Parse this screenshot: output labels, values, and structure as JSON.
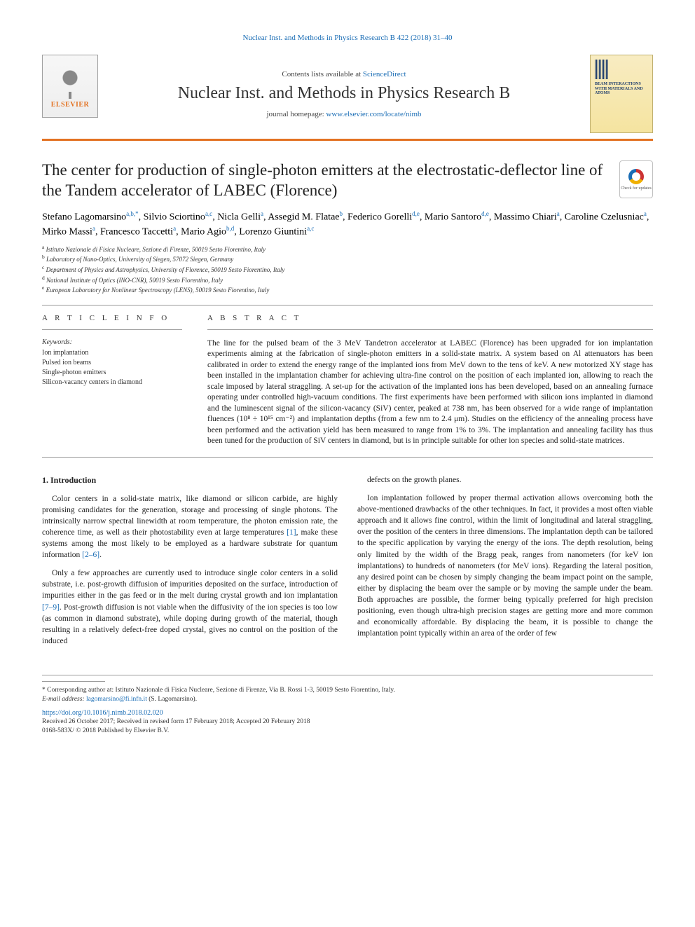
{
  "running_head": "Nuclear Inst. and Methods in Physics Research B 422 (2018) 31–40",
  "header": {
    "contents_prefix": "Contents lists available at ",
    "contents_link": "ScienceDirect",
    "journal_name": "Nuclear Inst. and Methods in Physics Research B",
    "homepage_prefix": "journal homepage: ",
    "homepage_url": "www.elsevier.com/locate/nimb",
    "elsevier_brand": "ELSEVIER",
    "cover_text": "BEAM INTERACTIONS WITH MATERIALS AND ATOMS"
  },
  "colors": {
    "accent_orange": "#e37222",
    "link_blue": "#1a6db5",
    "text": "#222222",
    "rule": "#999999"
  },
  "article": {
    "title": "The center for production of single-photon emitters at the electrostatic-deflector line of the Tandem accelerator of LABEC (Florence)",
    "check_updates_label": "Check for updates"
  },
  "authors_html": "Stefano Lagomarsino<sup>a,b,*</sup>, Silvio Sciortino<sup>a,c</sup>, Nicla Gelli<sup>a</sup>, Assegid M. Flatae<sup>b</sup>, Federico Gorelli<sup>d,e</sup>, Mario Santoro<sup>d,e</sup>, Massimo Chiari<sup>a</sup>, Caroline Czelusniac<sup>a</sup>, Mirko Massi<sup>a</sup>, Francesco Taccetti<sup>a</sup>, Mario Agio<sup>b,d</sup>, Lorenzo Giuntini<sup>a,c</sup>",
  "affiliations": [
    "a Istituto Nazionale di Fisica Nucleare, Sezione di Firenze, 50019 Sesto Fiorentino, Italy",
    "b Laboratory of Nano-Optics, University of Siegen, 57072 Siegen, Germany",
    "c Department of Physics and Astrophysics, University of Florence, 50019 Sesto Fiorentino, Italy",
    "d National Institute of Optics (INO-CNR), 50019 Sesto Fiorentino, Italy",
    "e European Laboratory for Nonlinear Spectroscopy (LENS), 50019 Sesto Fiorentino, Italy"
  ],
  "article_info": {
    "head": "A R T I C L E   I N F O",
    "kw_label": "Keywords:",
    "keywords": [
      "Ion implantation",
      "Pulsed ion beams",
      "Single-photon emitters",
      "Silicon-vacancy centers in diamond"
    ]
  },
  "abstract": {
    "head": "A B S T R A C T",
    "text": "The line for the pulsed beam of the 3 MeV Tandetron accelerator at LABEC (Florence) has been upgraded for ion implantation experiments aiming at the fabrication of single-photon emitters in a solid-state matrix. A system based on Al attenuators has been calibrated in order to extend the energy range of the implanted ions from MeV down to the tens of keV. A new motorized XY stage has been installed in the implantation chamber for achieving ultra-fine control on the position of each implanted ion, allowing to reach the scale imposed by lateral straggling. A set-up for the activation of the implanted ions has been developed, based on an annealing furnace operating under controlled high-vacuum conditions. The first experiments have been performed with silicon ions implanted in diamond and the luminescent signal of the silicon-vacancy (SiV) center, peaked at 738 nm, has been observed for a wide range of implantation fluences (10⁸ ÷ 10¹⁵ cm⁻²) and implantation depths (from a few nm to 2.4 μm). Studies on the efficiency of the annealing process have been performed and the activation yield has been measured to range from 1% to 3%. The implantation and annealing facility has thus been tuned for the production of SiV centers in diamond, but is in principle suitable for other ion species and solid-state matrices."
  },
  "body": {
    "section_heading": "1. Introduction",
    "left_paragraphs": [
      "Color centers in a solid-state matrix, like diamond or silicon carbide, are highly promising candidates for the generation, storage and processing of single photons. The intrinsically narrow spectral linewidth at room temperature, the photon emission rate, the coherence time, as well as their photostability even at large temperatures [1], make these systems among the most likely to be employed as a hardware substrate for quantum information [2–6].",
      "Only a few approaches are currently used to introduce single color centers in a solid substrate, i.e. post-growth diffusion of impurities deposited on the surface, introduction of impurities either in the gas feed or in the melt during crystal growth and ion implantation [7–9]. Post-growth diffusion is not viable when the diffusivity of the ion species is too low (as common in diamond substrate), while doping during growth of the material, though resulting in a relatively defect-free doped crystal, gives no control on the position of the induced"
    ],
    "right_paragraphs": [
      "defects on the growth planes.",
      "Ion implantation followed by proper thermal activation allows overcoming both the above-mentioned drawbacks of the other techniques. In fact, it provides a most often viable approach and it allows fine control, within the limit of longitudinal and lateral straggling, over the position of the centers in three dimensions. The implantation depth can be tailored to the specific application by varying the energy of the ions. The depth resolution, being only limited by the width of the Bragg peak, ranges from nanometers (for keV ion implantations) to hundreds of nanometers (for MeV ions). Regarding the lateral position, any desired point can be chosen by simply changing the beam impact point on the sample, either by displacing the beam over the sample or by moving the sample under the beam. Both approaches are possible, the former being typically preferred for high precision positioning, even though ultra-high precision stages are getting more and more common and economically affordable. By displacing the beam, it is possible to change the implantation point typically within an area of the order of few"
    ],
    "refs": {
      "r1": "[1]",
      "r2_6": "[2–6]",
      "r7_9": "[7–9]"
    }
  },
  "footer": {
    "corr": "* Corresponding author at: Istituto Nazionale di Fisica Nucleare, Sezione di Firenze, Via B. Rossi 1-3, 50019 Sesto Fiorentino, Italy.",
    "email_label": "E-mail address: ",
    "email": "lagomarsino@fi.infn.it",
    "email_suffix": " (S. Lagomarsino).",
    "doi": "https://doi.org/10.1016/j.nimb.2018.02.020",
    "history": "Received 26 October 2017; Received in revised form 17 February 2018; Accepted 20 February 2018",
    "copyright": "0168-583X/ © 2018 Published by Elsevier B.V."
  }
}
